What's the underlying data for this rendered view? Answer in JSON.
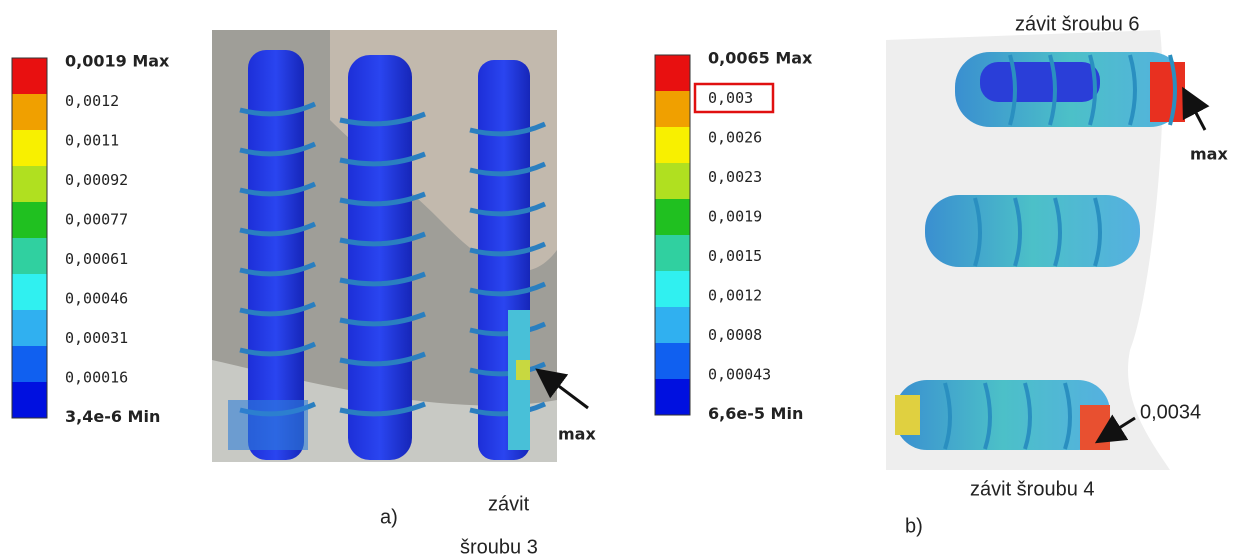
{
  "panel_a": {
    "legend": [
      "0,0019 Max",
      "0,0012",
      "0,0011",
      "0,00092",
      "0,00077",
      "0,00061",
      "0,00046",
      "0,00031",
      "0,00016",
      "3,4e-6 Min"
    ],
    "max_label": "max",
    "caption": "a)",
    "thread_label": [
      "závit",
      "šroubu 3"
    ]
  },
  "panel_b": {
    "legend": [
      "0,0065 Max",
      "0,003",
      "0,0026",
      "0,0023",
      "0,0019",
      "0,0015",
      "0,0012",
      "0,0008",
      "0,00043",
      "6,6e-5 Min"
    ],
    "top_label": "závit šroubu 6",
    "max_label": "max",
    "value_label": "0,0034",
    "bottom_label": "závit šroubu 4",
    "caption": "b)"
  }
}
